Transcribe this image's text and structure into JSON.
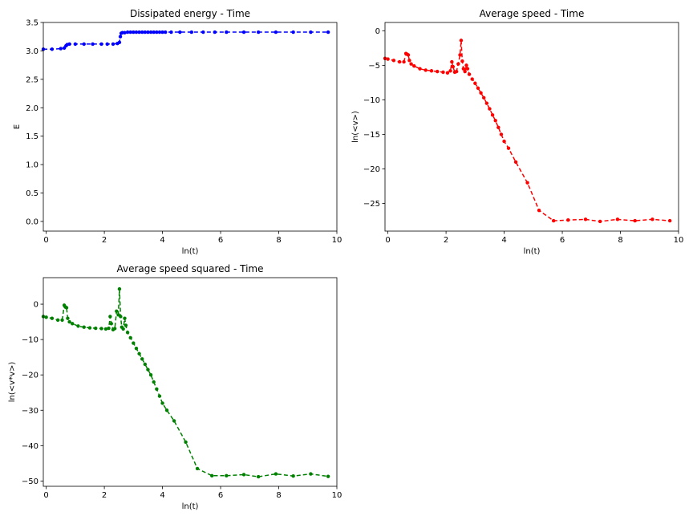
{
  "chart_data": [
    {
      "type": "line",
      "title": "Dissipated energy - Time",
      "xlabel": "ln(t)",
      "ylabel": "E",
      "xlim": [
        -0.1,
        10
      ],
      "ylim": [
        -0.17,
        3.5
      ],
      "xticks": [
        0,
        2,
        4,
        6,
        8,
        10
      ],
      "yticks": [
        0.0,
        0.5,
        1.0,
        1.5,
        2.0,
        2.5,
        3.0,
        3.5
      ],
      "ytick_labels": [
        "0.0",
        "0.5",
        "1.0",
        "1.5",
        "2.0",
        "2.5",
        "3.0",
        "3.5"
      ],
      "grid": false,
      "color": "#0000ff",
      "line_style": "dashed",
      "marker": "dot",
      "series": [
        {
          "x": [
            -0.1,
            0.2,
            0.5,
            0.62,
            0.68,
            0.72,
            0.8,
            1.0,
            1.3,
            1.6,
            1.9,
            2.1,
            2.3,
            2.45,
            2.52,
            2.55,
            2.58,
            2.62,
            2.7,
            2.8,
            2.9,
            3.0,
            3.1,
            3.2,
            3.3,
            3.4,
            3.5,
            3.6,
            3.7,
            3.8,
            3.9,
            4.0,
            4.1,
            4.3,
            4.6,
            5.0,
            5.4,
            5.8,
            6.2,
            6.8,
            7.3,
            7.9,
            8.5,
            9.1,
            9.7
          ],
          "y": [
            3.03,
            3.03,
            3.04,
            3.05,
            3.09,
            3.11,
            3.12,
            3.12,
            3.12,
            3.12,
            3.12,
            3.12,
            3.12,
            3.13,
            3.15,
            3.25,
            3.31,
            3.32,
            3.32,
            3.33,
            3.33,
            3.33,
            3.33,
            3.33,
            3.33,
            3.33,
            3.33,
            3.33,
            3.33,
            3.33,
            3.33,
            3.33,
            3.33,
            3.33,
            3.33,
            3.33,
            3.33,
            3.33,
            3.33,
            3.33,
            3.33,
            3.33,
            3.33,
            3.33,
            3.33
          ]
        }
      ]
    },
    {
      "type": "line",
      "title": "Average speed - Time",
      "xlabel": "ln(t)",
      "ylabel": "ln(<v>)",
      "xlim": [
        -0.1,
        10
      ],
      "ylim": [
        -29,
        1.2
      ],
      "xticks": [
        0,
        2,
        4,
        6,
        8,
        10
      ],
      "yticks": [
        0,
        -5,
        -10,
        -15,
        -20,
        -25
      ],
      "ytick_labels": [
        "0",
        "−5",
        "−10",
        "−15",
        "−20",
        "−25"
      ],
      "grid": false,
      "color": "#ff0000",
      "line_style": "dashed",
      "marker": "dot",
      "series": [
        {
          "x": [
            -0.1,
            0.0,
            0.2,
            0.4,
            0.55,
            0.62,
            0.66,
            0.7,
            0.74,
            0.8,
            0.9,
            1.1,
            1.3,
            1.5,
            1.7,
            1.9,
            2.05,
            2.15,
            2.2,
            2.24,
            2.3,
            2.36,
            2.42,
            2.48,
            2.52,
            2.56,
            2.6,
            2.65,
            2.7,
            2.74,
            2.8,
            2.9,
            3.0,
            3.1,
            3.2,
            3.3,
            3.4,
            3.5,
            3.6,
            3.7,
            3.8,
            3.9,
            4.0,
            4.15,
            4.4,
            4.8,
            5.2,
            5.7,
            6.2,
            6.8,
            7.3,
            7.9,
            8.5,
            9.1,
            9.7
          ],
          "y": [
            -4.0,
            -4.1,
            -4.3,
            -4.5,
            -4.5,
            -3.3,
            -3.4,
            -3.5,
            -4.3,
            -4.8,
            -5.1,
            -5.5,
            -5.7,
            -5.8,
            -5.9,
            -6.0,
            -6.1,
            -5.8,
            -4.5,
            -5.2,
            -6.0,
            -5.9,
            -4.8,
            -3.5,
            -1.4,
            -4.4,
            -5.5,
            -5.9,
            -5.0,
            -5.5,
            -6.3,
            -7.0,
            -7.6,
            -8.3,
            -9.0,
            -9.7,
            -10.5,
            -11.3,
            -12.2,
            -13.0,
            -14.0,
            -15.0,
            -16.0,
            -17.0,
            -19.0,
            -22.0,
            -26.0,
            -27.5,
            -27.4,
            -27.3,
            -27.6,
            -27.3,
            -27.5,
            -27.3,
            -27.5
          ]
        }
      ]
    },
    {
      "type": "line",
      "title": "Average speed squared - Time",
      "xlabel": "ln(t)",
      "ylabel": "ln(<v*v>)",
      "xlim": [
        -0.1,
        10
      ],
      "ylim": [
        -51.5,
        7.5
      ],
      "xticks": [
        0,
        2,
        4,
        6,
        8,
        10
      ],
      "yticks": [
        0,
        -10,
        -20,
        -30,
        -40,
        -50
      ],
      "ytick_labels": [
        "0",
        "−10",
        "−20",
        "−30",
        "−40",
        "−50"
      ],
      "grid": false,
      "color": "#008000",
      "line_style": "dashed",
      "marker": "dot",
      "series": [
        {
          "x": [
            -0.1,
            0.0,
            0.2,
            0.4,
            0.55,
            0.62,
            0.66,
            0.7,
            0.74,
            0.8,
            0.9,
            1.1,
            1.3,
            1.5,
            1.7,
            1.9,
            2.05,
            2.15,
            2.2,
            2.24,
            2.3,
            2.36,
            2.42,
            2.48,
            2.52,
            2.56,
            2.6,
            2.65,
            2.7,
            2.74,
            2.8,
            2.9,
            3.0,
            3.1,
            3.2,
            3.3,
            3.4,
            3.5,
            3.6,
            3.7,
            3.8,
            3.9,
            4.0,
            4.15,
            4.4,
            4.8,
            5.2,
            5.7,
            6.2,
            6.8,
            7.3,
            7.9,
            8.5,
            9.1,
            9.7
          ],
          "y": [
            -3.5,
            -3.7,
            -4.0,
            -4.5,
            -4.5,
            -0.3,
            -0.8,
            -1.0,
            -4.0,
            -5.0,
            -5.5,
            -6.2,
            -6.5,
            -6.7,
            -6.8,
            -6.9,
            -7.0,
            -6.8,
            -3.5,
            -5.5,
            -7.2,
            -6.9,
            -2.0,
            -3.0,
            4.3,
            -3.5,
            -6.5,
            -7.0,
            -4.0,
            -6.0,
            -8.0,
            -9.5,
            -11.0,
            -12.5,
            -14.0,
            -15.5,
            -17.0,
            -18.5,
            -20.0,
            -22.0,
            -24.0,
            -26.0,
            -28.0,
            -30.0,
            -33.0,
            -39.0,
            -46.5,
            -48.5,
            -48.5,
            -48.2,
            -48.8,
            -48.0,
            -48.6,
            -48.0,
            -48.7
          ]
        }
      ]
    }
  ]
}
